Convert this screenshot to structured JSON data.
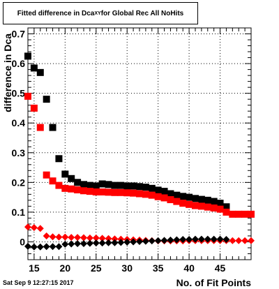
{
  "chart_data": {
    "type": "scatter",
    "title_main": "Fitted difference in Dca",
    "title_sub": "XY",
    "title_rest": " for Global Rec All NoHits",
    "xlabel": "No. of Fit Points",
    "ylabel": "difference in Dca",
    "xlim": [
      14,
      50
    ],
    "ylim": [
      -0.06,
      0.72
    ],
    "xticks": [
      15,
      20,
      25,
      30,
      35,
      40,
      45
    ],
    "yticks": [
      0,
      0.1,
      0.2,
      0.3,
      0.4,
      0.5,
      0.6,
      0.7
    ],
    "ytick_labels": [
      "0",
      "0.1",
      "0.2",
      "0.3",
      "0.4",
      "0.5",
      "0.6",
      "0.7"
    ],
    "grid": true,
    "series": [
      {
        "color": "#000000",
        "marker": "square",
        "x": [
          14,
          15,
          16,
          17,
          18,
          19,
          20,
          21,
          22,
          23,
          24,
          25,
          26,
          27,
          28,
          29,
          30,
          31,
          32,
          33,
          34,
          35,
          36,
          37,
          38,
          39,
          40,
          41,
          42,
          43,
          44,
          45,
          46
        ],
        "y": [
          0.625,
          0.585,
          0.57,
          0.48,
          0.385,
          0.28,
          0.228,
          0.213,
          0.2,
          0.193,
          0.19,
          0.188,
          0.195,
          0.193,
          0.19,
          0.19,
          0.188,
          0.188,
          0.186,
          0.184,
          0.18,
          0.174,
          0.17,
          0.162,
          0.157,
          0.153,
          0.15,
          0.146,
          0.143,
          0.14,
          0.136,
          0.13,
          0.118
        ]
      },
      {
        "color": "#ff0000",
        "marker": "square",
        "x": [
          14,
          15,
          16,
          17,
          18,
          19,
          20,
          21,
          22,
          23,
          24,
          25,
          26,
          27,
          28,
          29,
          30,
          31,
          32,
          33,
          34,
          35,
          36,
          37,
          38,
          39,
          40,
          41,
          42,
          43,
          44,
          45,
          46,
          47,
          48,
          49,
          50
        ],
        "y": [
          0.49,
          0.45,
          0.385,
          0.225,
          0.205,
          0.19,
          0.18,
          0.178,
          0.175,
          0.172,
          0.17,
          0.168,
          0.168,
          0.167,
          0.166,
          0.166,
          0.165,
          0.164,
          0.162,
          0.16,
          0.157,
          0.152,
          0.148,
          0.142,
          0.136,
          0.13,
          0.126,
          0.122,
          0.12,
          0.117,
          0.114,
          0.11,
          0.1,
          0.093,
          0.093,
          0.093,
          0.093
        ]
      },
      {
        "color": "#ff0000",
        "marker": "diamond",
        "x": [
          14,
          15,
          16,
          17,
          18,
          19,
          20,
          21,
          22,
          23,
          24,
          25,
          26,
          27,
          28,
          29,
          30,
          31,
          32,
          33,
          34,
          35,
          36,
          37,
          38,
          39,
          40,
          41,
          42,
          43,
          44,
          45,
          46,
          47,
          48,
          49,
          50
        ],
        "y": [
          0.05,
          0.048,
          0.045,
          0.02,
          0.017,
          0.016,
          0.016,
          0.015,
          0.015,
          0.014,
          0.013,
          0.013,
          0.012,
          0.011,
          0.01,
          0.009,
          0.008,
          0.007,
          0.006,
          0.005,
          0.004,
          0.003,
          0.003,
          0.003,
          0.003,
          0.003,
          0.004,
          0.004,
          0.004,
          0.004,
          0.004,
          0.004,
          0.004,
          0.004,
          0.004,
          0.004,
          0.004
        ]
      },
      {
        "color": "#000000",
        "marker": "diamond",
        "x": [
          14,
          15,
          16,
          17,
          18,
          19,
          20,
          21,
          22,
          23,
          24,
          25,
          26,
          27,
          28,
          29,
          30,
          31,
          32,
          33,
          34,
          35,
          36,
          37,
          38,
          39,
          40,
          41,
          42,
          43,
          44,
          45,
          46
        ],
        "y": [
          -0.015,
          -0.017,
          -0.017,
          -0.016,
          -0.016,
          -0.016,
          -0.008,
          -0.007,
          -0.006,
          -0.006,
          -0.005,
          -0.004,
          -0.004,
          -0.003,
          -0.003,
          -0.002,
          -0.001,
          0.0,
          0.001,
          0.002,
          0.003,
          0.004,
          0.005,
          0.006,
          0.007,
          0.008,
          0.008,
          0.009,
          0.009,
          0.009,
          0.009,
          0.009,
          0.008
        ]
      }
    ]
  },
  "timestamp": "Sat Sep  9 12:27:15 2017"
}
